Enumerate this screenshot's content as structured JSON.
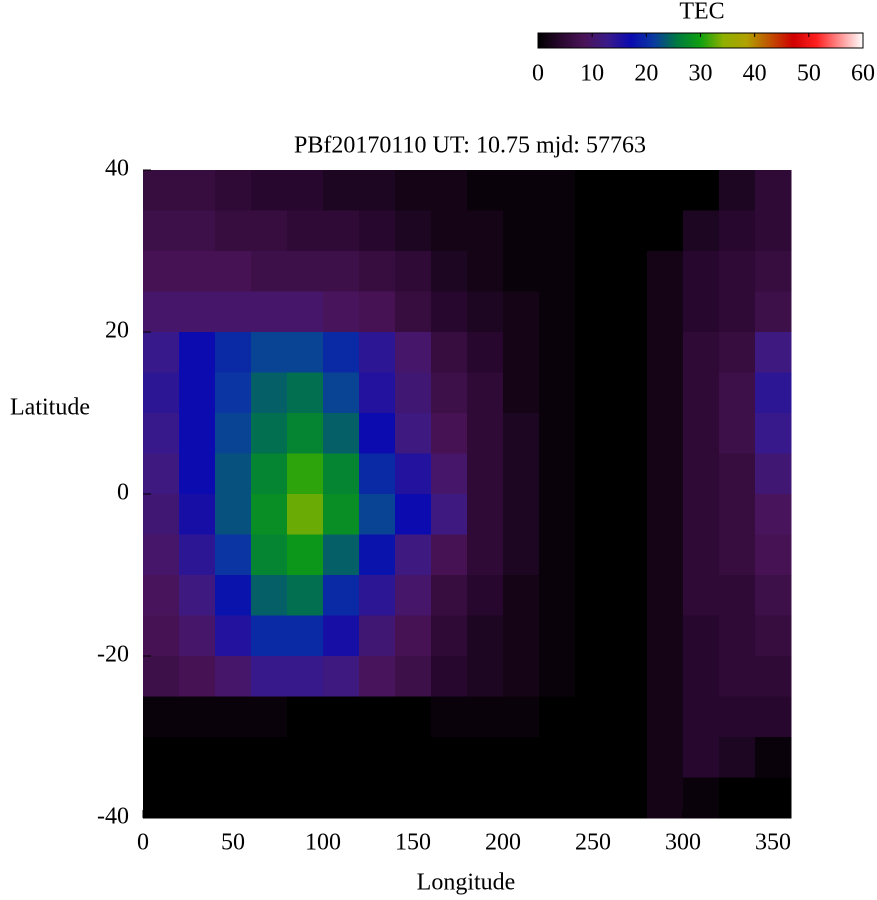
{
  "chart_data": {
    "type": "heatmap",
    "title": "PBf20170110  UT: 10.75  mjd: 57763",
    "xlabel": "Longitude",
    "ylabel": "Latitude",
    "colorbar_label": "TEC",
    "xlim": [
      0,
      360
    ],
    "xticks": [
      0,
      50,
      100,
      150,
      200,
      250,
      300,
      350
    ],
    "ylim": [
      -40,
      40
    ],
    "yticks": [
      -40,
      -20,
      0,
      20,
      40
    ],
    "zlim": [
      0,
      60
    ],
    "zticks": [
      0,
      10,
      20,
      30,
      40,
      50,
      60
    ],
    "colormap": [
      "#000000",
      "#2a0830",
      "#4a1458",
      "#3a1a8a",
      "#0a0ab0",
      "#0a3aa0",
      "#007a40",
      "#10a010",
      "#90b000",
      "#b0a000",
      "#c05000",
      "#d00000",
      "#ff2020",
      "#ff9090",
      "#ffffff"
    ],
    "x": [
      10,
      30,
      50,
      70,
      90,
      110,
      130,
      150,
      170,
      190,
      210,
      230,
      250,
      270,
      290,
      310,
      330,
      350
    ],
    "y": [
      37.5,
      32.5,
      27.5,
      22.5,
      17.5,
      12.5,
      7.5,
      2.5,
      -2.5,
      -7.5,
      -12.5,
      -17.5,
      -22.5,
      -27.5,
      -32.5,
      -37.5
    ],
    "z": [
      [
        6,
        6,
        5,
        4,
        4,
        3,
        3,
        2,
        2,
        1,
        1,
        1,
        0,
        0,
        0,
        0,
        3,
        5
      ],
      [
        7,
        7,
        6,
        6,
        5,
        5,
        4,
        3,
        2,
        2,
        1,
        1,
        0,
        0,
        0,
        3,
        4,
        5
      ],
      [
        8,
        8,
        8,
        7,
        7,
        7,
        6,
        5,
        3,
        2,
        1,
        1,
        0,
        0,
        2,
        4,
        5,
        6
      ],
      [
        10,
        10,
        10,
        10,
        10,
        9,
        8,
        6,
        4,
        3,
        2,
        1,
        0,
        0,
        2,
        4,
        5,
        7
      ],
      [
        13,
        17,
        20,
        22,
        22,
        20,
        14,
        10,
        6,
        4,
        2,
        1,
        0,
        0,
        2,
        5,
        6,
        12
      ],
      [
        14,
        17,
        21,
        24,
        25,
        22,
        15,
        11,
        7,
        5,
        2,
        1,
        0,
        0,
        2,
        5,
        7,
        14
      ],
      [
        13,
        17,
        22,
        25,
        27,
        24,
        17,
        12,
        8,
        5,
        3,
        1,
        0,
        0,
        2,
        5,
        7,
        13
      ],
      [
        12,
        17,
        23,
        27,
        31,
        27,
        20,
        15,
        10,
        5,
        3,
        1,
        0,
        0,
        2,
        5,
        6,
        11
      ],
      [
        11,
        16,
        23,
        28,
        33,
        28,
        22,
        17,
        12,
        5,
        3,
        1,
        0,
        0,
        2,
        5,
        6,
        9
      ],
      [
        10,
        14,
        21,
        27,
        29,
        24,
        18,
        12,
        8,
        5,
        3,
        1,
        0,
        0,
        2,
        5,
        6,
        8
      ],
      [
        9,
        12,
        18,
        24,
        25,
        20,
        14,
        10,
        6,
        4,
        2,
        1,
        0,
        0,
        2,
        5,
        5,
        7
      ],
      [
        8,
        10,
        15,
        20,
        20,
        16,
        11,
        8,
        5,
        3,
        2,
        1,
        0,
        0,
        2,
        4,
        5,
        6
      ],
      [
        7,
        8,
        10,
        13,
        13,
        12,
        9,
        7,
        4,
        3,
        2,
        1,
        0,
        0,
        2,
        4,
        5,
        5
      ],
      [
        1,
        1,
        1,
        1,
        0,
        0,
        0,
        0,
        1,
        1,
        1,
        0,
        0,
        0,
        2,
        4,
        4,
        4
      ],
      [
        0,
        0,
        0,
        0,
        0,
        0,
        0,
        0,
        0,
        0,
        0,
        0,
        0,
        0,
        2,
        4,
        3,
        1
      ],
      [
        0,
        0,
        0,
        0,
        0,
        0,
        0,
        0,
        0,
        0,
        0,
        0,
        0,
        0,
        2,
        1,
        0,
        0
      ]
    ]
  }
}
